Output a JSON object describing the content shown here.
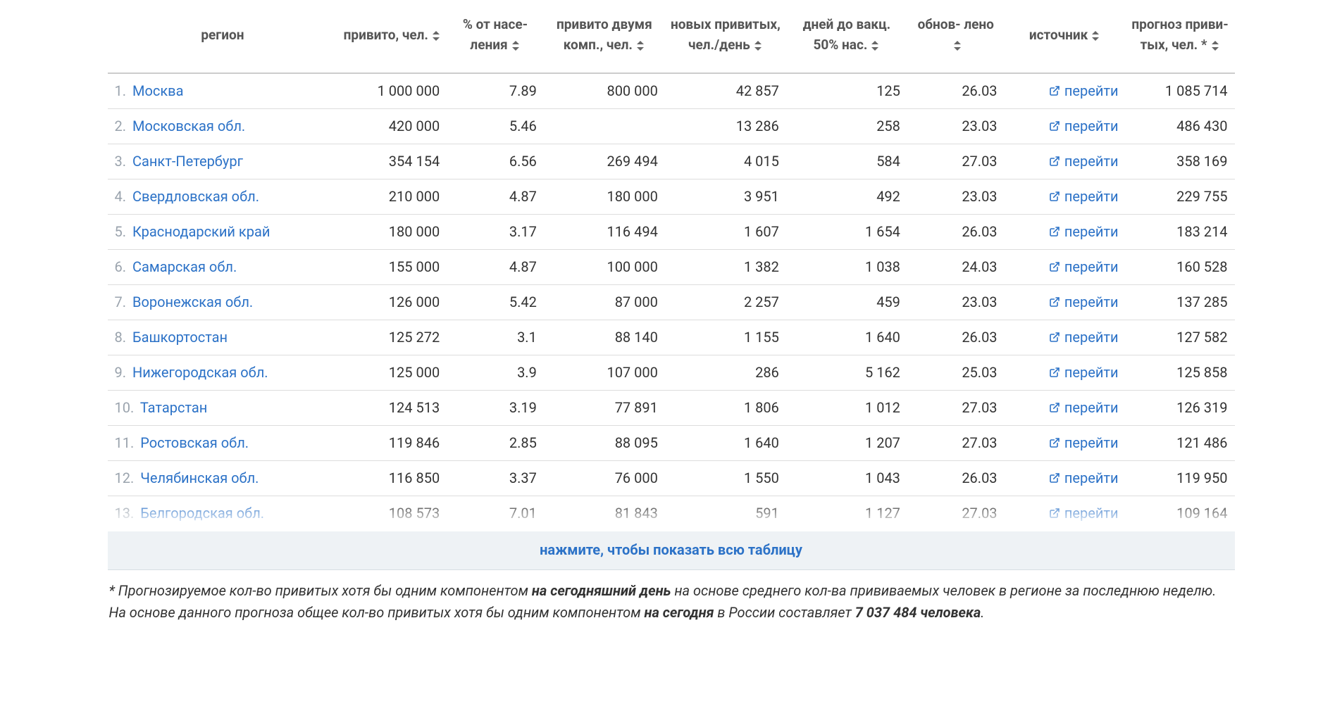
{
  "colors": {
    "link": "#2c72c7",
    "muted": "#9aa3ad",
    "header_text": "#555555",
    "row_border": "#dddddd",
    "header_border": "#cccccc",
    "expand_bg": "#eef2f5",
    "expand_border": "#d7dde2"
  },
  "table": {
    "headers": {
      "region": "регион",
      "vaccinated": "привито, чел.",
      "pct": "% от насе- ления",
      "two_comp": "привито двумя комп., чел.",
      "new_per_day": "новых привитых, чел./день",
      "days_to_50": "дней до вакц. 50% нас.",
      "updated": "обнов- лено",
      "source": "источник",
      "forecast": "прогноз приви- тых, чел. *"
    },
    "go_label": "перейти",
    "rows": [
      {
        "rank": "1.",
        "region": "Москва",
        "vaccinated": "1 000 000",
        "pct": "7.89",
        "two_comp": "800 000",
        "new_per_day": "42 857",
        "days_to_50": "125",
        "updated": "26.03",
        "forecast": "1 085 714"
      },
      {
        "rank": "2.",
        "region": "Московская обл.",
        "vaccinated": "420 000",
        "pct": "5.46",
        "two_comp": "",
        "new_per_day": "13 286",
        "days_to_50": "258",
        "updated": "23.03",
        "forecast": "486 430"
      },
      {
        "rank": "3.",
        "region": "Санкт-Петербург",
        "vaccinated": "354 154",
        "pct": "6.56",
        "two_comp": "269 494",
        "new_per_day": "4 015",
        "days_to_50": "584",
        "updated": "27.03",
        "forecast": "358 169"
      },
      {
        "rank": "4.",
        "region": "Свердловская обл.",
        "vaccinated": "210 000",
        "pct": "4.87",
        "two_comp": "180 000",
        "new_per_day": "3 951",
        "days_to_50": "492",
        "updated": "23.03",
        "forecast": "229 755"
      },
      {
        "rank": "5.",
        "region": "Краснодарский край",
        "vaccinated": "180 000",
        "pct": "3.17",
        "two_comp": "116 494",
        "new_per_day": "1 607",
        "days_to_50": "1 654",
        "updated": "26.03",
        "forecast": "183 214"
      },
      {
        "rank": "6.",
        "region": "Самарская обл.",
        "vaccinated": "155 000",
        "pct": "4.87",
        "two_comp": "100 000",
        "new_per_day": "1 382",
        "days_to_50": "1 038",
        "updated": "24.03",
        "forecast": "160 528"
      },
      {
        "rank": "7.",
        "region": "Воронежская обл.",
        "vaccinated": "126 000",
        "pct": "5.42",
        "two_comp": "87 000",
        "new_per_day": "2 257",
        "days_to_50": "459",
        "updated": "23.03",
        "forecast": "137 285"
      },
      {
        "rank": "8.",
        "region": "Башкортостан",
        "vaccinated": "125 272",
        "pct": "3.1",
        "two_comp": "88 140",
        "new_per_day": "1 155",
        "days_to_50": "1 640",
        "updated": "26.03",
        "forecast": "127 582"
      },
      {
        "rank": "9.",
        "region": "Нижегородская обл.",
        "vaccinated": "125 000",
        "pct": "3.9",
        "two_comp": "107 000",
        "new_per_day": "286",
        "days_to_50": "5 162",
        "updated": "25.03",
        "forecast": "125 858"
      },
      {
        "rank": "10.",
        "region": "Татарстан",
        "vaccinated": "124 513",
        "pct": "3.19",
        "two_comp": "77 891",
        "new_per_day": "1 806",
        "days_to_50": "1 012",
        "updated": "27.03",
        "forecast": "126 319"
      },
      {
        "rank": "11.",
        "region": "Ростовская обл.",
        "vaccinated": "119 846",
        "pct": "2.85",
        "two_comp": "88 095",
        "new_per_day": "1 640",
        "days_to_50": "1 207",
        "updated": "27.03",
        "forecast": "121 486"
      },
      {
        "rank": "12.",
        "region": "Челябинская обл.",
        "vaccinated": "116 850",
        "pct": "3.37",
        "two_comp": "76 000",
        "new_per_day": "1 550",
        "days_to_50": "1 043",
        "updated": "26.03",
        "forecast": "119 950"
      },
      {
        "rank": "13.",
        "region": "Белгородская обл.",
        "vaccinated": "108 573",
        "pct": "7.01",
        "two_comp": "81 843",
        "new_per_day": "591",
        "days_to_50": "1 127",
        "updated": "27.03",
        "forecast": "109 164"
      }
    ]
  },
  "expand_label": "нажмите, чтобы показать всю таблицу",
  "footnote": {
    "line1_pre": "* Прогнозируемое кол-во привитых хотя бы одним компонентом ",
    "line1_bold": "на сегодняшний день",
    "line1_post": " на основе среднего кол-ва прививаемых человек в регионе за последнюю неделю.",
    "line2_pre": "На основе данного прогноза общее кол-во привитых хотя бы одним компонентом ",
    "line2_bold1": "на сегодня",
    "line2_mid": " в России составляет ",
    "line2_bold2": "7 037 484 человека",
    "line2_post": "."
  }
}
